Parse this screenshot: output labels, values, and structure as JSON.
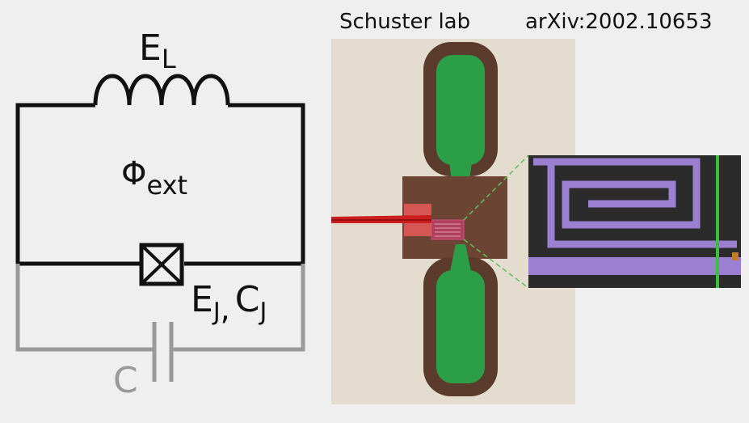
{
  "header": {
    "lab": "Schuster lab",
    "reference": "arXiv:2002.10653"
  },
  "circuit": {
    "inductor": {
      "symbol": "E",
      "subscript": "L"
    },
    "flux": {
      "symbol": "Φ",
      "subscript": "ext"
    },
    "junction": {
      "ej_symbol": "E",
      "ej_subscript": "J",
      "separator": ",",
      "cj_symbol": "C",
      "cj_subscript": "J"
    },
    "capacitor": {
      "symbol": "C"
    }
  },
  "colors": {
    "wire": "#111111",
    "shunt_wire": "#999999",
    "substrate": "#e3dccf",
    "metal_border": "#5b3b2c",
    "pad_green": "#2c9e48",
    "inset_bg": "#2b2b2b",
    "inset_meander": "#9b7fd0",
    "feedline": "#cc1e1e",
    "zoom_lines": "#5fbf5f"
  }
}
